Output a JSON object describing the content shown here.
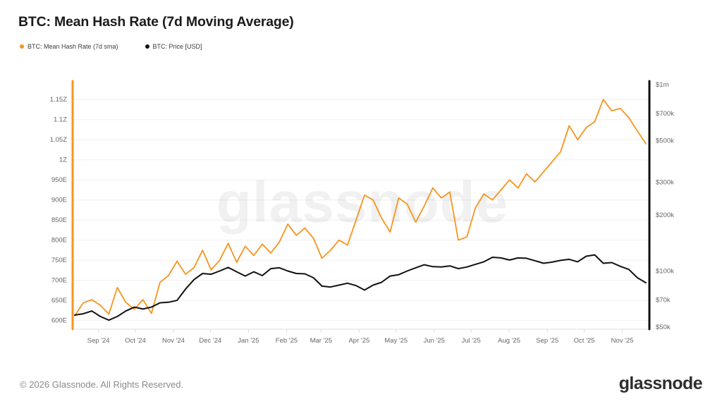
{
  "header": {
    "title": "BTC: Mean Hash Rate (7d Moving Average)"
  },
  "legend": [
    {
      "label": "BTC: Mean Hash Rate (7d sma)",
      "color": "#f7941d"
    },
    {
      "label": "BTC: Price [USD]",
      "color": "#111111"
    }
  ],
  "footer": {
    "copyright": "© 2026 Glassnode. All Rights Reserved.",
    "logo": "glassnode"
  },
  "chart_data": {
    "type": "line",
    "title": "BTC: Mean Hash Rate (7d Moving Average)",
    "watermark": "glassnode",
    "grid": true,
    "legend_position": "top-left",
    "colors": {
      "grid": "#efefef",
      "axis_text": "#666666",
      "baseline": "#dddddd"
    },
    "x_ticks": {
      "labels": [
        "Sep '24",
        "Oct '24",
        "Nov '24",
        "Dec '24",
        "Jan '25",
        "Feb '25",
        "Mar '25",
        "Apr '25",
        "May '25",
        "Jun '25",
        "Jul '25",
        "Aug '25",
        "Sep '25",
        "Oct '25",
        "Nov '25"
      ],
      "pos": [
        0.0448,
        0.1088,
        0.1748,
        0.2388,
        0.3049,
        0.371,
        0.4307,
        0.4968,
        0.5608,
        0.6269,
        0.6909,
        0.7569,
        0.823,
        0.887,
        0.9531
      ]
    },
    "left_axis": {
      "scale": "linear",
      "unit": "EH/s",
      "min": 582,
      "max": 1196,
      "axis_color": "#f7941d",
      "ticks": [
        {
          "v": 600,
          "label": "600E"
        },
        {
          "v": 650,
          "label": "650E"
        },
        {
          "v": 700,
          "label": "700E"
        },
        {
          "v": 750,
          "label": "750E"
        },
        {
          "v": 800,
          "label": "800E"
        },
        {
          "v": 850,
          "label": "850E"
        },
        {
          "v": 900,
          "label": "900E"
        },
        {
          "v": 950,
          "label": "950E"
        },
        {
          "v": 1000,
          "label": "1Z"
        },
        {
          "v": 1050,
          "label": "1.05Z"
        },
        {
          "v": 1100,
          "label": "1.1Z"
        },
        {
          "v": 1150,
          "label": "1.15Z"
        }
      ]
    },
    "right_axis": {
      "scale": "log",
      "unit": "USD (thousands)",
      "min": 49.6,
      "max": 1044,
      "axis_color": "#111111",
      "ticks": [
        {
          "v": 1000,
          "label": "$1m"
        },
        {
          "v": 700,
          "label": "$700k"
        },
        {
          "v": 500,
          "label": "$500k"
        },
        {
          "v": 300,
          "label": "$300k"
        },
        {
          "v": 200,
          "label": "$200k"
        },
        {
          "v": 100,
          "label": "$100k"
        },
        {
          "v": 70,
          "label": "$70k"
        },
        {
          "v": 50,
          "label": "$50k"
        }
      ]
    },
    "x_sampling": "weekly, Aug 2024 through Nov 2025",
    "series": [
      {
        "name": "BTC: Mean Hash Rate (7d sma)",
        "axis": "left",
        "color": "#f7941d",
        "width": 1.8,
        "unit": "EH/s",
        "values": [
          612,
          644,
          652,
          638,
          616,
          682,
          645,
          628,
          652,
          618,
          695,
          712,
          748,
          715,
          732,
          775,
          726,
          750,
          792,
          745,
          785,
          762,
          790,
          768,
          795,
          840,
          812,
          830,
          805,
          755,
          775,
          800,
          788,
          850,
          912,
          900,
          855,
          820,
          905,
          890,
          845,
          885,
          930,
          905,
          920,
          800,
          808,
          880,
          915,
          900,
          925,
          950,
          930,
          965,
          945,
          970,
          995,
          1020,
          1085,
          1050,
          1080,
          1095,
          1150,
          1122,
          1128,
          1105,
          1072,
          1040
        ]
      },
      {
        "name": "BTC: Price [USD]",
        "axis": "right",
        "color": "#111111",
        "width": 2,
        "unit": "kUSD",
        "values": [
          58,
          59,
          61,
          57,
          54.5,
          57,
          61,
          64,
          62.5,
          64,
          67.5,
          68,
          69.5,
          80,
          90,
          97,
          96,
          100,
          104.5,
          99,
          94,
          99,
          94.5,
          103,
          104,
          100,
          97,
          96.5,
          92,
          83,
          82,
          84,
          86,
          83.5,
          79,
          84,
          87,
          94,
          95.5,
          100,
          104,
          108,
          105.5,
          105,
          106.5,
          103,
          105,
          108.5,
          112,
          118.5,
          117.5,
          114.5,
          117.5,
          117,
          113.5,
          110,
          111.5,
          114,
          115.5,
          112,
          120,
          122,
          110,
          111,
          106,
          102,
          92,
          86.5
        ]
      }
    ]
  }
}
